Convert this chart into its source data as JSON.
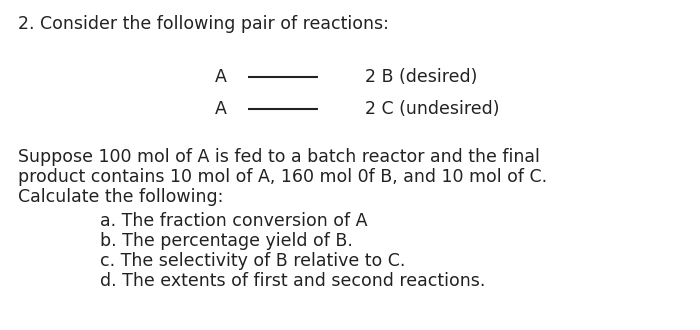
{
  "background_color": "#ffffff",
  "title_line": "2. Consider the following pair of reactions:",
  "reaction1_left": "A",
  "reaction1_right": "2 B (desired)",
  "reaction2_left": "A",
  "reaction2_right": "2 C (undesired)",
  "para_line1": "Suppose 100 mol of A is fed to a batch reactor and the final",
  "para_line2": "product contains 10 mol of A, 160 mol 0f B, and 10 mol of C.",
  "para_line3": "Calculate the following:",
  "items": [
    "a. The fraction conversion of A",
    "b. The percentage yield of B.",
    "c. The selectivity of B relative to C.",
    "d. The extents of first and second reactions."
  ],
  "font_size": 12.5,
  "text_color": "#222222",
  "line_color": "#222222",
  "fig_width": 7.0,
  "fig_height": 3.3,
  "dpi": 100
}
